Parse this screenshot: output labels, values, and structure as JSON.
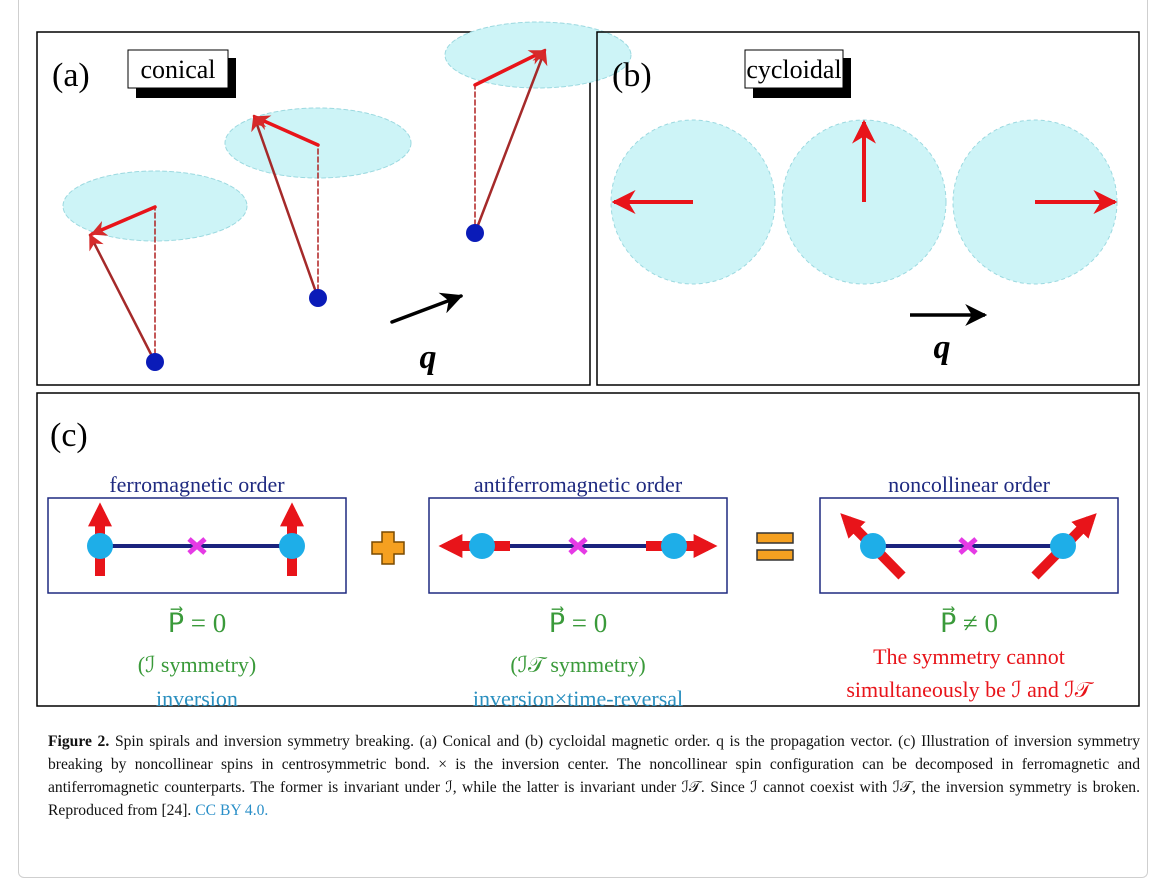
{
  "panels": [
    {
      "label": "(a)",
      "title": "conical",
      "vector": "q"
    },
    {
      "label": "(b)",
      "title": "cycloidal",
      "vector": "q"
    },
    {
      "label": "(c)",
      "orders": [
        {
          "title": "ferromagnetic order",
          "polarization": "P⃗ = 0",
          "symmetry": "(ℐ symmetry)",
          "meaning": "inversion"
        },
        {
          "title": "antiferromagnetic order",
          "polarization": "P⃗ = 0",
          "symmetry": "(ℐ𝒯 symmetry)",
          "meaning": "inversion×time-reversal"
        },
        {
          "title": "noncollinear order",
          "polarization": "P⃗ ≠ 0",
          "symmetry": "The symmetry cannot",
          "meaning": "simultaneously be ℐ and ℐ𝒯"
        }
      ]
    }
  ],
  "caption": {
    "label": "Figure 2.",
    "text": "Spin spirals and inversion symmetry breaking. (a) Conical and (b) cycloidal magnetic order. q is the propagation vector. (c) Illustration of inversion symmetry breaking by noncollinear spins in centrosymmetric bond. × is the inversion center. The noncollinear spin configuration can be decomposed in ferromagnetic and antiferromagnetic counterparts. The former is invariant under ℐ, while the latter is invariant under ℐ𝒯. Since ℐ cannot coexist with ℐ𝒯, the inversion symmetry is broken.",
    "source": "Reproduced from [24].",
    "license": "CC BY 4.0."
  }
}
